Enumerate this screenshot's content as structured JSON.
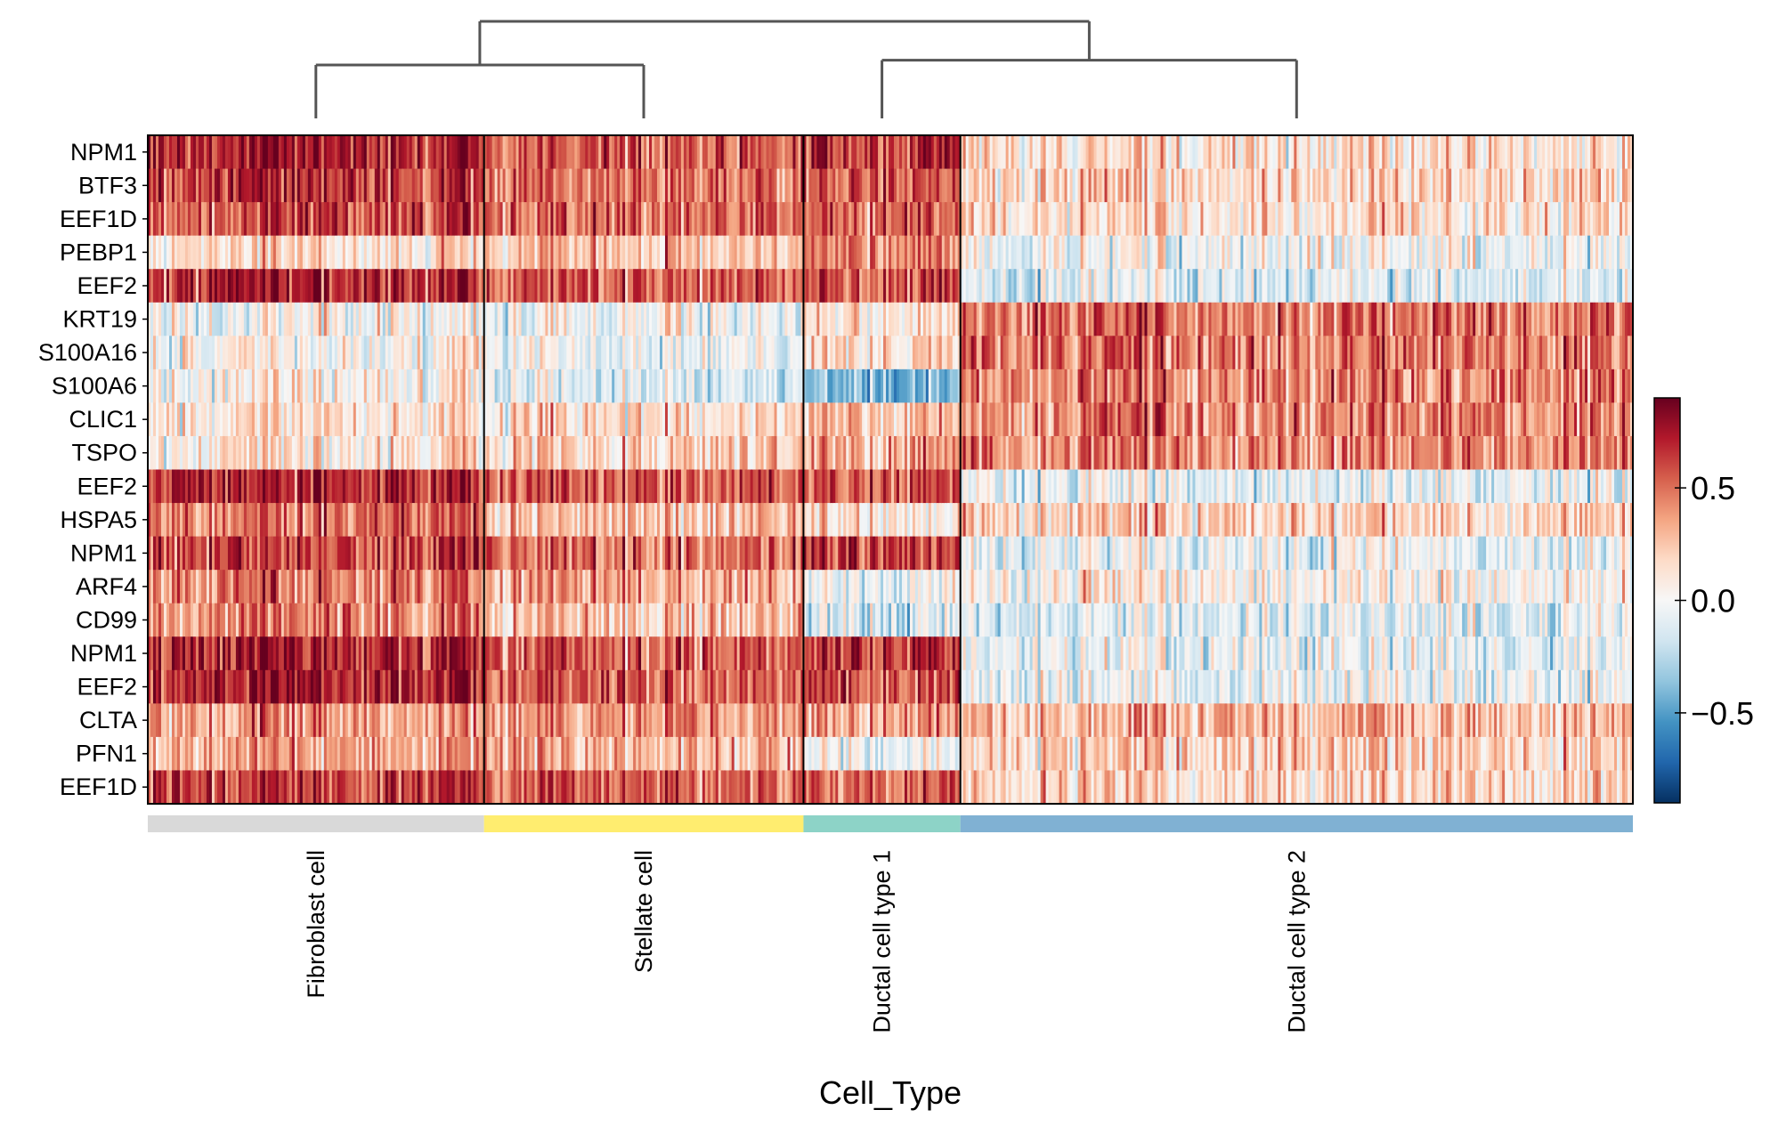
{
  "chart_data": {
    "type": "heatmap",
    "title": "",
    "xlabel": "Cell_Type",
    "genes": [
      "NPM1",
      "BTF3",
      "EEF1D",
      "PEBP1",
      "EEF2",
      "KRT19",
      "S100A16",
      "S100A6",
      "CLIC1",
      "TSPO",
      "EEF2",
      "HSPA5",
      "NPM1",
      "ARF4",
      "CD99",
      "NPM1",
      "EEF2",
      "CLTA",
      "PFN1",
      "EEF1D"
    ],
    "groups": [
      {
        "name": "Fibroblast cell",
        "color": "#d9d9d9",
        "cells": 300,
        "mean_expression": [
          0.7,
          0.65,
          0.6,
          0.15,
          0.7,
          0.0,
          0.05,
          0.05,
          0.1,
          0.1,
          0.7,
          0.5,
          0.6,
          0.45,
          0.45,
          0.7,
          0.7,
          0.4,
          0.35,
          0.65
        ]
      },
      {
        "name": "Stellate cell",
        "color": "#ffed6f",
        "cells": 285,
        "mean_expression": [
          0.55,
          0.5,
          0.5,
          0.25,
          0.55,
          0.0,
          -0.05,
          -0.1,
          0.15,
          0.2,
          0.55,
          0.25,
          0.5,
          0.35,
          0.25,
          0.55,
          0.55,
          0.4,
          0.3,
          0.55
        ]
      },
      {
        "name": "Ductal cell type 1",
        "color": "#8dd3c7",
        "cells": 140,
        "mean_expression": [
          0.65,
          0.6,
          0.55,
          0.5,
          0.6,
          0.15,
          0.2,
          -0.35,
          0.3,
          0.35,
          0.6,
          0.1,
          0.65,
          0.0,
          -0.15,
          0.65,
          0.6,
          0.4,
          0.0,
          0.55
        ]
      },
      {
        "name": "Ductal cell type 2",
        "color": "#80b1d3",
        "cells": 600,
        "mean_expression": [
          0.15,
          0.2,
          0.15,
          0.0,
          -0.1,
          0.5,
          0.5,
          0.45,
          0.45,
          0.45,
          -0.05,
          0.2,
          -0.05,
          0.05,
          -0.1,
          -0.05,
          -0.05,
          0.3,
          0.2,
          0.2
        ]
      }
    ],
    "dendrogram": [
      {
        "left": "Fibroblast cell",
        "right": "Stellate cell",
        "height": 0.55
      },
      {
        "left": "Ductal cell type 1",
        "right": "Ductal cell type 2",
        "height": 0.6
      },
      {
        "left": "Fibroblast cell + Stellate cell",
        "right": "Ductal cell type 1 + Ductal cell type 2",
        "height": 1.0
      }
    ],
    "colorbar": {
      "cmap": "RdBu_r",
      "vmin": -0.9,
      "vmax": 0.9,
      "ticks": [
        0.5,
        0.0,
        -0.5
      ],
      "tick_labels": [
        "0.5",
        "0.0",
        "−0.5"
      ]
    }
  }
}
